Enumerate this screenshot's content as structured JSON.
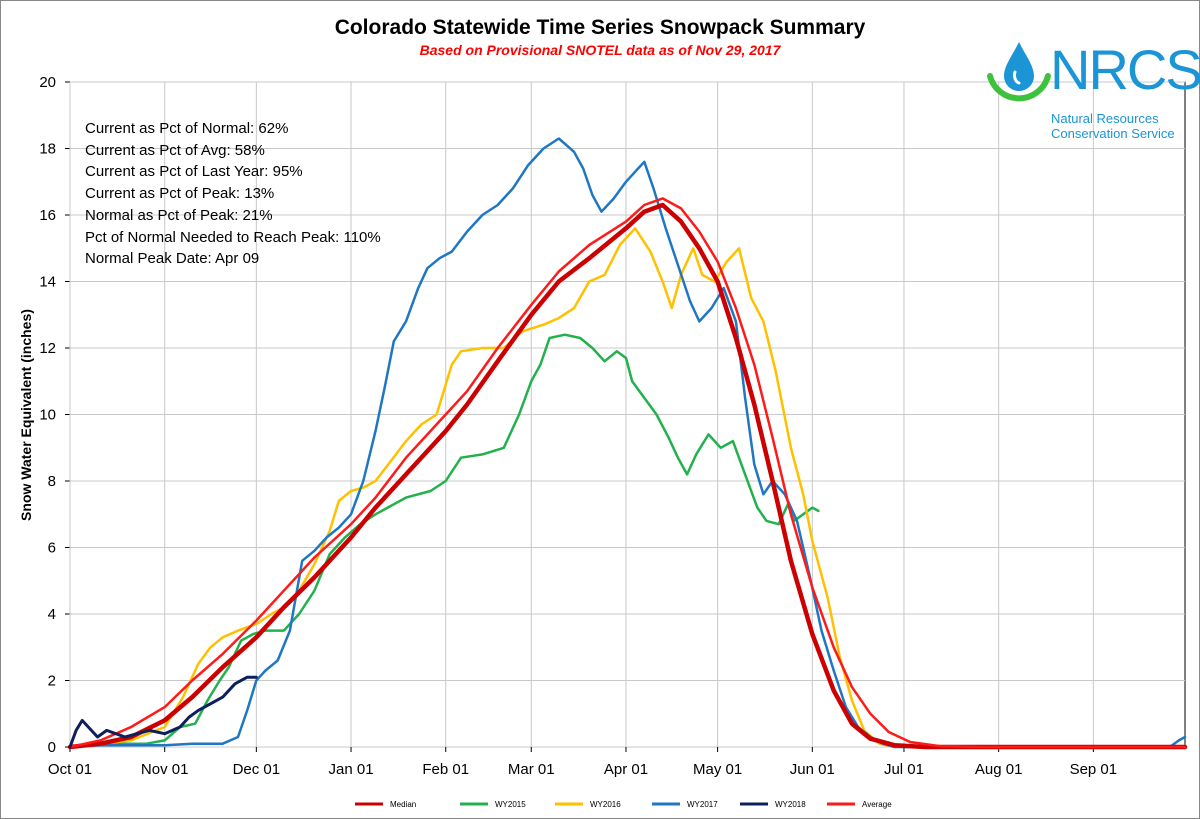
{
  "title": "Colorado Statewide Time Series Snowpack Summary",
  "subtitle": "Based on Provisional SNOTEL data as of Nov 29, 2017",
  "stats": [
    "Current  as Pct of Normal: 62%",
    "Current  as Pct of Avg: 58%",
    "Current  as Pct of Last Year: 95%",
    "Current  as Pct of Peak: 13%",
    "Normal as Pct of Peak: 21%",
    "Pct of Normal Needed  to Reach Peak: 110%",
    "Normal Peak Date: Apr 09"
  ],
  "logo": {
    "name": "NRCS",
    "line1": "Natural Resources",
    "line2": "Conservation Service"
  },
  "colors": {
    "median": "#cc0000",
    "wy2015": "#22b14c",
    "wy2016": "#ffc000",
    "wy2017": "#1f77c4",
    "wy2018": "#0d1f5c",
    "average": "#ff1a1a",
    "logo": "#1b95d6",
    "logo_ring": "#3ec23e"
  },
  "chart_data": {
    "type": "line",
    "title": "Colorado Statewide Time Series Snowpack Summary",
    "xlabel": "",
    "ylabel": "Snow Water Equivalent (inches)",
    "ylim": [
      0,
      20
    ],
    "yticks": [
      "0",
      "2",
      "4",
      "6",
      "8",
      "10",
      "12",
      "14",
      "16",
      "18",
      "20"
    ],
    "xlim": [
      0,
      365
    ],
    "x_unit": "days since Oct 01",
    "xticks": [
      {
        "label": "Oct 01",
        "day": 0
      },
      {
        "label": "Nov 01",
        "day": 31
      },
      {
        "label": "Dec 01",
        "day": 61
      },
      {
        "label": "Jan 01",
        "day": 92
      },
      {
        "label": "Feb 01",
        "day": 123
      },
      {
        "label": "Mar 01",
        "day": 151
      },
      {
        "label": "Apr 01",
        "day": 182
      },
      {
        "label": "May 01",
        "day": 212
      },
      {
        "label": "Jun 01",
        "day": 243
      },
      {
        "label": "Jul 01",
        "day": 273
      },
      {
        "label": "Aug 01",
        "day": 304
      },
      {
        "label": "Sep 01",
        "day": 335
      }
    ],
    "grid": true,
    "legend_position": "bottom",
    "series": [
      {
        "name": "Median",
        "color_key": "median",
        "width": 4.5,
        "points": [
          [
            0,
            0
          ],
          [
            10,
            0.1
          ],
          [
            20,
            0.3
          ],
          [
            31,
            0.8
          ],
          [
            40,
            1.5
          ],
          [
            50,
            2.4
          ],
          [
            61,
            3.3
          ],
          [
            70,
            4.2
          ],
          [
            80,
            5.1
          ],
          [
            92,
            6.3
          ],
          [
            100,
            7.2
          ],
          [
            110,
            8.2
          ],
          [
            123,
            9.5
          ],
          [
            130,
            10.3
          ],
          [
            140,
            11.6
          ],
          [
            151,
            13.0
          ],
          [
            160,
            14.0
          ],
          [
            170,
            14.7
          ],
          [
            182,
            15.6
          ],
          [
            188,
            16.1
          ],
          [
            194,
            16.3
          ],
          [
            200,
            15.8
          ],
          [
            206,
            15.0
          ],
          [
            212,
            14.0
          ],
          [
            218,
            12.3
          ],
          [
            224,
            10.3
          ],
          [
            230,
            8.0
          ],
          [
            236,
            5.6
          ],
          [
            243,
            3.4
          ],
          [
            250,
            1.7
          ],
          [
            256,
            0.7
          ],
          [
            262,
            0.25
          ],
          [
            270,
            0.05
          ],
          [
            280,
            0
          ],
          [
            365,
            0
          ]
        ]
      },
      {
        "name": "WY2015",
        "color_key": "wy2015",
        "width": 2.5,
        "points": [
          [
            0,
            0
          ],
          [
            10,
            0.1
          ],
          [
            20,
            0.1
          ],
          [
            25,
            0.1
          ],
          [
            31,
            0.2
          ],
          [
            36,
            0.6
          ],
          [
            41,
            0.7
          ],
          [
            45,
            1.4
          ],
          [
            49,
            2.0
          ],
          [
            52,
            2.4
          ],
          [
            56,
            3.2
          ],
          [
            60,
            3.4
          ],
          [
            64,
            3.5
          ],
          [
            70,
            3.5
          ],
          [
            75,
            4.0
          ],
          [
            80,
            4.7
          ],
          [
            85,
            5.8
          ],
          [
            90,
            6.3
          ],
          [
            95,
            6.7
          ],
          [
            100,
            7.0
          ],
          [
            110,
            7.5
          ],
          [
            118,
            7.7
          ],
          [
            123,
            8.0
          ],
          [
            128,
            8.7
          ],
          [
            135,
            8.8
          ],
          [
            142,
            9.0
          ],
          [
            147,
            10.0
          ],
          [
            151,
            11.0
          ],
          [
            154,
            11.5
          ],
          [
            157,
            12.3
          ],
          [
            162,
            12.4
          ],
          [
            167,
            12.3
          ],
          [
            171,
            12.0
          ],
          [
            175,
            11.6
          ],
          [
            179,
            11.9
          ],
          [
            182,
            11.7
          ],
          [
            184,
            11.0
          ],
          [
            188,
            10.5
          ],
          [
            192,
            10.0
          ],
          [
            196,
            9.3
          ],
          [
            199,
            8.7
          ],
          [
            202,
            8.2
          ],
          [
            205,
            8.8
          ],
          [
            209,
            9.4
          ],
          [
            213,
            9.0
          ],
          [
            217,
            9.2
          ],
          [
            221,
            8.2
          ],
          [
            225,
            7.2
          ],
          [
            228,
            6.8
          ],
          [
            232,
            6.7
          ],
          [
            235,
            7.3
          ],
          [
            237,
            6.8
          ],
          [
            240,
            7.0
          ],
          [
            243,
            7.2
          ],
          [
            245,
            7.1
          ]
        ]
      },
      {
        "name": "WY2016",
        "color_key": "wy2016",
        "width": 2.5,
        "points": [
          [
            0,
            0
          ],
          [
            10,
            0.1
          ],
          [
            20,
            0.2
          ],
          [
            31,
            0.6
          ],
          [
            37,
            1.5
          ],
          [
            42,
            2.5
          ],
          [
            46,
            3.0
          ],
          [
            50,
            3.3
          ],
          [
            55,
            3.5
          ],
          [
            61,
            3.7
          ],
          [
            66,
            4.0
          ],
          [
            70,
            4.2
          ],
          [
            75,
            4.7
          ],
          [
            80,
            5.5
          ],
          [
            85,
            6.5
          ],
          [
            88,
            7.4
          ],
          [
            92,
            7.7
          ],
          [
            96,
            7.8
          ],
          [
            100,
            8.0
          ],
          [
            105,
            8.6
          ],
          [
            110,
            9.2
          ],
          [
            115,
            9.7
          ],
          [
            120,
            10.0
          ],
          [
            125,
            11.5
          ],
          [
            128,
            11.9
          ],
          [
            135,
            12.0
          ],
          [
            142,
            12.0
          ],
          [
            148,
            12.5
          ],
          [
            155,
            12.7
          ],
          [
            160,
            12.9
          ],
          [
            165,
            13.2
          ],
          [
            170,
            14.0
          ],
          [
            175,
            14.2
          ],
          [
            180,
            15.1
          ],
          [
            185,
            15.6
          ],
          [
            190,
            14.9
          ],
          [
            194,
            14.0
          ],
          [
            197,
            13.2
          ],
          [
            200,
            14.2
          ],
          [
            204,
            15.0
          ],
          [
            207,
            14.2
          ],
          [
            211,
            14.0
          ],
          [
            215,
            14.6
          ],
          [
            219,
            15.0
          ],
          [
            223,
            13.5
          ],
          [
            227,
            12.8
          ],
          [
            231,
            11.3
          ],
          [
            236,
            9.0
          ],
          [
            240,
            7.6
          ],
          [
            243,
            6.2
          ],
          [
            248,
            4.5
          ],
          [
            252,
            2.7
          ],
          [
            256,
            1.4
          ],
          [
            260,
            0.5
          ],
          [
            265,
            0.1
          ],
          [
            270,
            0
          ]
        ]
      },
      {
        "name": "WY2017",
        "color_key": "wy2017",
        "width": 2.5,
        "points": [
          [
            0,
            0
          ],
          [
            10,
            0.05
          ],
          [
            20,
            0.05
          ],
          [
            31,
            0.05
          ],
          [
            40,
            0.1
          ],
          [
            50,
            0.1
          ],
          [
            55,
            0.3
          ],
          [
            58,
            1.1
          ],
          [
            61,
            2.0
          ],
          [
            64,
            2.3
          ],
          [
            68,
            2.6
          ],
          [
            72,
            3.5
          ],
          [
            76,
            5.6
          ],
          [
            80,
            5.9
          ],
          [
            84,
            6.3
          ],
          [
            88,
            6.6
          ],
          [
            92,
            7.0
          ],
          [
            96,
            8.0
          ],
          [
            100,
            9.5
          ],
          [
            103,
            10.8
          ],
          [
            106,
            12.2
          ],
          [
            110,
            12.8
          ],
          [
            114,
            13.8
          ],
          [
            117,
            14.4
          ],
          [
            121,
            14.7
          ],
          [
            125,
            14.9
          ],
          [
            130,
            15.5
          ],
          [
            135,
            16.0
          ],
          [
            140,
            16.3
          ],
          [
            145,
            16.8
          ],
          [
            150,
            17.5
          ],
          [
            155,
            18.0
          ],
          [
            160,
            18.3
          ],
          [
            165,
            17.9
          ],
          [
            168,
            17.4
          ],
          [
            171,
            16.6
          ],
          [
            174,
            16.1
          ],
          [
            178,
            16.5
          ],
          [
            182,
            17.0
          ],
          [
            185,
            17.3
          ],
          [
            188,
            17.6
          ],
          [
            191,
            16.8
          ],
          [
            195,
            15.6
          ],
          [
            199,
            14.5
          ],
          [
            203,
            13.4
          ],
          [
            206,
            12.8
          ],
          [
            210,
            13.2
          ],
          [
            214,
            13.8
          ],
          [
            218,
            12.8
          ],
          [
            221,
            10.5
          ],
          [
            224,
            8.5
          ],
          [
            227,
            7.6
          ],
          [
            230,
            8.0
          ],
          [
            234,
            7.6
          ],
          [
            238,
            6.8
          ],
          [
            242,
            5.2
          ],
          [
            246,
            3.5
          ],
          [
            250,
            2.3
          ],
          [
            254,
            1.2
          ],
          [
            258,
            0.6
          ],
          [
            262,
            0.3
          ],
          [
            266,
            0.1
          ],
          [
            270,
            0
          ],
          [
            360,
            0
          ],
          [
            363,
            0.2
          ],
          [
            365,
            0.3
          ]
        ]
      },
      {
        "name": "WY2018",
        "color_key": "wy2018",
        "width": 3,
        "points": [
          [
            0,
            0
          ],
          [
            2,
            0.5
          ],
          [
            4,
            0.8
          ],
          [
            7,
            0.5
          ],
          [
            9,
            0.3
          ],
          [
            12,
            0.5
          ],
          [
            15,
            0.4
          ],
          [
            18,
            0.3
          ],
          [
            22,
            0.4
          ],
          [
            26,
            0.5
          ],
          [
            31,
            0.4
          ],
          [
            36,
            0.6
          ],
          [
            39,
            0.9
          ],
          [
            42,
            1.1
          ],
          [
            46,
            1.3
          ],
          [
            50,
            1.5
          ],
          [
            54,
            1.9
          ],
          [
            58,
            2.1
          ],
          [
            61,
            2.1
          ]
        ]
      },
      {
        "name": "Average",
        "color_key": "average",
        "width": 2.5,
        "points": [
          [
            0,
            0
          ],
          [
            10,
            0.2
          ],
          [
            20,
            0.6
          ],
          [
            31,
            1.2
          ],
          [
            40,
            2.0
          ],
          [
            50,
            2.8
          ],
          [
            61,
            3.8
          ],
          [
            70,
            4.7
          ],
          [
            80,
            5.7
          ],
          [
            92,
            6.7
          ],
          [
            100,
            7.5
          ],
          [
            110,
            8.7
          ],
          [
            123,
            10.0
          ],
          [
            130,
            10.7
          ],
          [
            140,
            12.0
          ],
          [
            151,
            13.3
          ],
          [
            160,
            14.3
          ],
          [
            170,
            15.1
          ],
          [
            182,
            15.8
          ],
          [
            188,
            16.3
          ],
          [
            194,
            16.5
          ],
          [
            200,
            16.2
          ],
          [
            206,
            15.5
          ],
          [
            212,
            14.6
          ],
          [
            218,
            13.2
          ],
          [
            224,
            11.5
          ],
          [
            230,
            9.3
          ],
          [
            236,
            7.0
          ],
          [
            243,
            4.8
          ],
          [
            250,
            3.0
          ],
          [
            256,
            1.8
          ],
          [
            262,
            1.0
          ],
          [
            268,
            0.45
          ],
          [
            275,
            0.15
          ],
          [
            285,
            0.02
          ],
          [
            300,
            0
          ],
          [
            365,
            0
          ]
        ]
      }
    ]
  }
}
